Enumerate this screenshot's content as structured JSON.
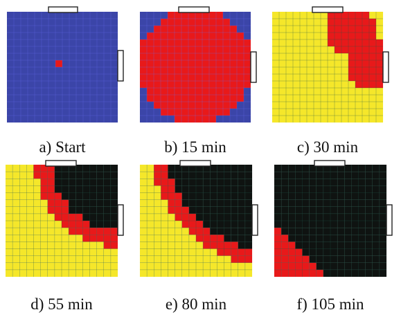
{
  "figure": {
    "grid_size": 16,
    "colors": {
      "unburned": "#3b45a8",
      "burning": "#e8191a",
      "heated": "#f5e72a",
      "burned": "#0f1311",
      "grid_line": "#6b6ff0",
      "grid_line_dark": "#1d5a4a",
      "vent": "#ffffff",
      "vent_stroke": "#222222"
    },
    "panels": [
      {
        "id": "a",
        "caption": "a) Start",
        "state": "start"
      },
      {
        "id": "b",
        "caption": "b) 15 min",
        "state": "15"
      },
      {
        "id": "c",
        "caption": "c) 30 min",
        "state": "30"
      },
      {
        "id": "d",
        "caption": "d) 55 min",
        "state": "55"
      },
      {
        "id": "e",
        "caption": "e) 80 min",
        "state": "80"
      },
      {
        "id": "f",
        "caption": "f) 105 min",
        "state": "105"
      }
    ]
  }
}
